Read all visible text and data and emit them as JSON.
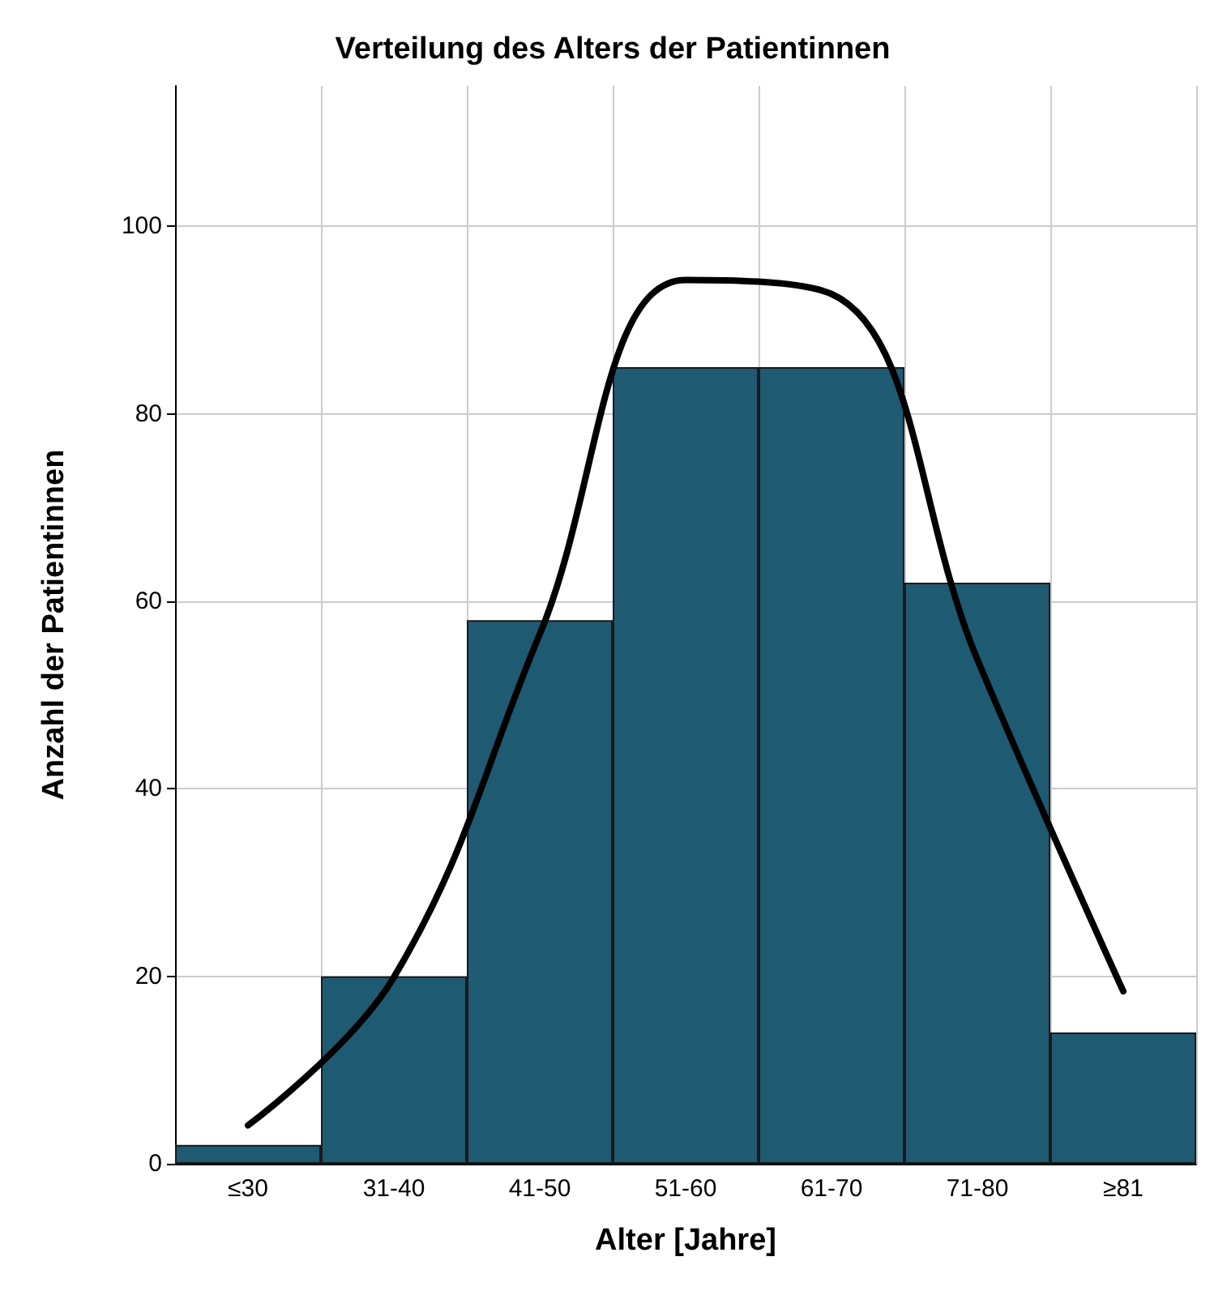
{
  "chart_data": {
    "type": "bar",
    "title": "Verteilung des Alters der Patientinnen",
    "xlabel": "Alter [Jahre]",
    "ylabel": "Anzahl der Patientinnen",
    "categories": [
      "≤30",
      "31-40",
      "41-50",
      "51-60",
      "61-70",
      "71-80",
      "≥81"
    ],
    "series": [
      {
        "color": "#1f5a73",
        "values": [
          2,
          20,
          58,
          85,
          85,
          62,
          14
        ]
      },
      {
        "type": "line",
        "color": "#000000",
        "values": [
          4.1,
          19.9,
          56.5,
          94.3,
          92.8,
          53.8,
          18.4
        ]
      }
    ],
    "ylim": [
      0,
      115
    ],
    "yticks": [
      0,
      20,
      40,
      60,
      80,
      100
    ],
    "grid": true,
    "marker": "none",
    "line_style": "solid"
  }
}
